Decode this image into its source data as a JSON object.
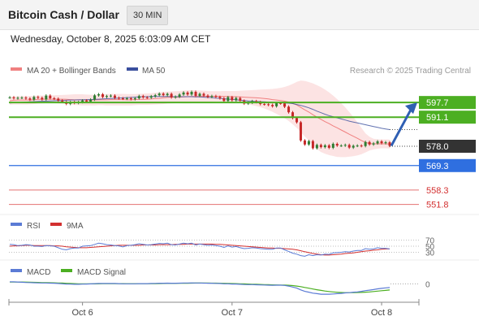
{
  "header": {
    "pair_title": "Bitcoin Cash / Dollar",
    "timeframe": "30 MIN",
    "datetime": "Wednesday, October 8, 2025 6:03:09 AM CET"
  },
  "colors": {
    "bullish_candle": "#2e7d32",
    "bearish_candle": "#c62828",
    "ma20": "#f08080",
    "bollinger_band": "#fbdada",
    "ma50": "#3a4f9e",
    "resistance": "#4caf22",
    "current_price": "#333333",
    "pivot": "#2f6fe0",
    "support": "#e57373",
    "rsi": "#5b7bd5",
    "rsi_9ma": "#d32f2f",
    "macd": "#5b7bd5",
    "macd_signal": "#4caf22",
    "forecast_arrow": "#2f5fb3"
  },
  "chart_data": [
    {
      "type": "candlestick",
      "panel": "price",
      "title": "",
      "legend": [
        {
          "label": "MA 20 + Bollinger Bands",
          "color": "#f08080"
        },
        {
          "label": "MA 50",
          "color": "#3a4f9e"
        }
      ],
      "watermark": "Research © 2025 Trading Central",
      "ylim": [
        548,
        608
      ],
      "x_ticks": [
        "Oct 6",
        "Oct 7",
        "Oct 8"
      ],
      "close": [
        600.0,
        599.6,
        599.8,
        599.9,
        599.5,
        599.0,
        600.2,
        599.8,
        599.1,
        600.8,
        599.6,
        599.4,
        598.6,
        598.0,
        597.1,
        597.9,
        597.5,
        597.9,
        598.6,
        598.1,
        599.0,
        600.9,
        601.4,
        600.2,
        600.6,
        600.8,
        599.8,
        599.6,
        599.4,
        599.6,
        599.2,
        599.6,
        600.6,
        600.0,
        599.9,
        600.5,
        601.0,
        601.7,
        601.0,
        601.6,
        600.0,
        600.3,
        601.3,
        602.2,
        601.3,
        602.5,
        600.7,
        601.6,
        600.8,
        600.2,
        600.6,
        600.2,
        599.6,
        598.4,
        600.1,
        598.7,
        599.7,
        598.5,
        597.2,
        597.6,
        598.3,
        597.9,
        597.0,
        596.9,
        596.6,
        596.0,
        597.4,
        597.3,
        595.8,
        593.3,
        590.7,
        588.8,
        580.6,
        578.8,
        580.3,
        577.1,
        578.6,
        577.6,
        578.4,
        577.3,
        579.1,
        578.3,
        578.3,
        578.6,
        577.4,
        578.2,
        578.3,
        578.1,
        579.9,
        578.8,
        579.3,
        580.2,
        579.4,
        579.8,
        578.2
      ],
      "ma20": [
        598.5,
        598.7,
        598.8,
        598.8,
        598.8,
        598.8,
        598.9,
        599.1,
        599.1,
        599.2,
        599.2,
        599.2,
        599.2,
        599.2,
        599.1,
        599.0,
        598.9,
        598.9,
        598.9,
        598.8,
        598.8,
        598.8,
        598.9,
        598.9,
        598.9,
        599.0,
        599.0,
        599.0,
        599.0,
        598.9,
        598.9,
        599.0,
        599.1,
        599.1,
        599.2,
        599.3,
        599.5,
        599.6,
        599.8,
        600.0,
        600.1,
        600.1,
        600.1,
        600.2,
        600.3,
        600.4,
        600.4,
        600.5,
        600.5,
        600.5,
        600.5,
        600.5,
        600.5,
        600.4,
        600.4,
        600.3,
        600.3,
        600.2,
        600.1,
        600.0,
        599.9,
        599.8,
        599.7,
        599.5,
        599.3,
        599.0,
        598.8,
        598.6,
        598.3,
        597.9,
        597.3,
        596.6,
        595.5,
        594.4,
        593.4,
        592.2,
        591.1,
        590.1,
        589.1,
        588.2,
        587.2,
        586.3,
        585.3,
        584.4,
        583.4,
        582.5,
        581.6,
        580.6,
        579.8,
        579.2,
        579.1,
        579.1,
        579.1,
        579.1,
        579.0
      ],
      "bb_upper": [
        600.3,
        600.4,
        600.5,
        600.6,
        600.6,
        600.6,
        600.7,
        600.8,
        600.8,
        600.9,
        600.9,
        601.0,
        601.0,
        601.1,
        601.2,
        601.3,
        601.4,
        601.4,
        601.4,
        601.3,
        601.2,
        601.2,
        601.3,
        601.4,
        601.5,
        601.6,
        601.6,
        601.6,
        601.6,
        601.5,
        601.5,
        601.5,
        601.6,
        601.7,
        601.8,
        601.9,
        602.1,
        602.3,
        602.5,
        602.6,
        602.7,
        602.8,
        602.9,
        603.1,
        603.2,
        603.3,
        603.2,
        603.1,
        603.0,
        602.9,
        602.8,
        602.8,
        602.8,
        602.9,
        602.9,
        602.9,
        602.9,
        603.0,
        603.1,
        603.2,
        603.3,
        603.4,
        603.5,
        603.6,
        603.7,
        603.8,
        604.0,
        604.3,
        604.7,
        605.3,
        606.1,
        607.0,
        607.6,
        607.4,
        606.9,
        606.3,
        605.5,
        604.6,
        603.5,
        602.3,
        600.8,
        599.2,
        597.4,
        595.5,
        593.4,
        591.2,
        588.8,
        586.3,
        583.8,
        582.3,
        581.4,
        581.1,
        581.0,
        581.1,
        581.0
      ],
      "bb_lower": [
        596.7,
        596.8,
        596.8,
        596.8,
        596.8,
        596.9,
        597.0,
        597.2,
        597.3,
        597.4,
        597.5,
        597.4,
        597.3,
        597.2,
        597.0,
        596.8,
        596.6,
        596.5,
        596.4,
        596.4,
        596.4,
        596.4,
        596.5,
        596.5,
        596.4,
        596.4,
        596.4,
        596.4,
        596.4,
        596.4,
        596.4,
        596.5,
        596.6,
        596.6,
        596.6,
        596.7,
        596.8,
        596.9,
        597.0,
        597.2,
        597.3,
        597.4,
        597.4,
        597.3,
        597.3,
        597.4,
        597.5,
        597.7,
        597.8,
        597.9,
        598.0,
        598.1,
        598.1,
        598.0,
        597.9,
        597.8,
        597.6,
        597.5,
        597.2,
        596.9,
        596.5,
        596.1,
        595.6,
        595.0,
        594.3,
        593.5,
        592.6,
        591.6,
        590.6,
        589.4,
        587.9,
        586.3,
        584.4,
        582.4,
        580.6,
        578.6,
        576.7,
        575.4,
        574.6,
        574.0,
        573.6,
        573.2,
        573.1,
        573.1,
        573.3,
        573.5,
        573.9,
        574.4,
        575.2,
        576.1,
        576.6,
        576.9,
        577.1,
        577.1,
        577.0
      ],
      "ma50": [
        597.5,
        597.6,
        597.7,
        597.8,
        597.9,
        598.0,
        598.1,
        598.2,
        598.3,
        598.3,
        598.4,
        598.5,
        598.6,
        598.6,
        598.7,
        598.8,
        598.8,
        598.9,
        598.9,
        599.0,
        599.0,
        599.1,
        599.2,
        599.3,
        599.4,
        599.5,
        599.6,
        599.7,
        599.8,
        599.9,
        600.0,
        600.1,
        600.2,
        600.3,
        600.3,
        600.4,
        600.4,
        600.4,
        600.4,
        600.4,
        600.3,
        600.3,
        600.3,
        600.3,
        600.3,
        600.3,
        600.2,
        600.2,
        600.1,
        600.0,
        599.9,
        599.7,
        599.6,
        599.4,
        599.2,
        599.1,
        598.9,
        598.7,
        598.6,
        598.4,
        598.3,
        598.2,
        598.1,
        598.0,
        597.9,
        597.8,
        597.7,
        597.6,
        597.5,
        597.4,
        597.2,
        596.8,
        596.4,
        595.9,
        595.3,
        594.6,
        593.8,
        593.1,
        592.4,
        591.8,
        591.3,
        590.8,
        590.3,
        589.8,
        589.3,
        588.9,
        588.5,
        588.1,
        587.7,
        587.3,
        586.9,
        586.5,
        586.1,
        585.8,
        585.5
      ],
      "levels": [
        {
          "role": "resistance",
          "value": "597.7"
        },
        {
          "role": "resistance",
          "value": "591.1"
        },
        {
          "role": "current",
          "value": "578.0"
        },
        {
          "role": "pivot",
          "value": "569.3"
        },
        {
          "role": "support",
          "value": "558.3"
        },
        {
          "role": "support",
          "value": "551.8"
        }
      ],
      "forecast_target": 597.7
    },
    {
      "type": "line",
      "panel": "rsi",
      "legend": [
        {
          "label": "RSI",
          "color": "#5b7bd5"
        },
        {
          "label": "9MA",
          "color": "#d32f2f"
        }
      ],
      "ylim": [
        10,
        90
      ],
      "y_ticks": [
        "70",
        "50",
        "30"
      ],
      "series": [
        {
          "name": "RSI",
          "values": [
            56,
            55,
            52,
            53,
            55,
            54,
            50,
            50,
            49,
            52,
            51,
            50,
            45,
            40,
            38,
            42,
            44,
            44,
            50,
            51,
            52,
            56,
            60,
            58,
            55,
            54,
            52,
            51,
            48,
            52,
            53,
            55,
            58,
            56,
            54,
            55,
            57,
            59,
            58,
            60,
            55,
            54,
            57,
            60,
            58,
            60,
            54,
            57,
            55,
            53,
            54,
            52,
            50,
            46,
            51,
            47,
            49,
            45,
            42,
            43,
            45,
            44,
            42,
            41,
            40,
            40,
            44,
            44,
            38,
            33,
            27,
            24,
            19,
            17,
            22,
            19,
            22,
            21,
            24,
            23,
            28,
            29,
            30,
            32,
            31,
            34,
            36,
            36,
            42,
            40,
            41,
            45,
            43,
            43,
            41
          ]
        },
        {
          "name": "9MA",
          "values": [
            50,
            51,
            51,
            52,
            53,
            53,
            52,
            52,
            52,
            52,
            52,
            51,
            51,
            50,
            48,
            47,
            46,
            45,
            45,
            45,
            46,
            47,
            48,
            49,
            50,
            51,
            52,
            53,
            53,
            53,
            53,
            53,
            53,
            54,
            54,
            54,
            54,
            55,
            55,
            55,
            55,
            56,
            56,
            56,
            57,
            57,
            57,
            57,
            57,
            57,
            57,
            56,
            56,
            55,
            54,
            53,
            52,
            51,
            50,
            49,
            48,
            47,
            46,
            45,
            44,
            44,
            43,
            43,
            42,
            41,
            40,
            38,
            35,
            32,
            29,
            26,
            24,
            22,
            21,
            21,
            22,
            23,
            24,
            26,
            27,
            28,
            30,
            32,
            34,
            35,
            37,
            38,
            40,
            41,
            41
          ]
        }
      ]
    },
    {
      "type": "line",
      "panel": "macd",
      "legend": [
        {
          "label": "MACD",
          "color": "#5b7bd5"
        },
        {
          "label": "MACD Signal",
          "color": "#4caf22"
        }
      ],
      "ylim": [
        -6,
        2
      ],
      "y_ticks": [
        "0"
      ],
      "series": [
        {
          "name": "MACD",
          "values": [
            0.8,
            0.75,
            0.7,
            0.6,
            0.5,
            0.45,
            0.4,
            0.35,
            0.3,
            0.3,
            0.25,
            0.2,
            0.1,
            0.0,
            -0.1,
            -0.15,
            -0.2,
            -0.2,
            -0.15,
            -0.1,
            -0.05,
            0.05,
            0.1,
            0.1,
            0.1,
            0.1,
            0.1,
            0.05,
            0.0,
            0.0,
            0.0,
            0.0,
            0.05,
            0.05,
            0.05,
            0.1,
            0.15,
            0.2,
            0.2,
            0.25,
            0.2,
            0.2,
            0.25,
            0.3,
            0.3,
            0.35,
            0.3,
            0.3,
            0.25,
            0.2,
            0.2,
            0.15,
            0.1,
            0.0,
            0.0,
            -0.1,
            -0.1,
            -0.2,
            -0.3,
            -0.35,
            -0.35,
            -0.4,
            -0.45,
            -0.5,
            -0.55,
            -0.6,
            -0.55,
            -0.55,
            -0.65,
            -0.9,
            -1.3,
            -1.7,
            -2.4,
            -3.0,
            -3.3,
            -3.7,
            -3.9,
            -4.1,
            -4.1,
            -4.1,
            -4.0,
            -3.9,
            -3.8,
            -3.6,
            -3.5,
            -3.3,
            -3.2,
            -3.0,
            -2.7,
            -2.5,
            -2.3,
            -2.0,
            -1.8,
            -1.6,
            -1.5
          ]
        },
        {
          "name": "MACD Signal",
          "values": [
            0.7,
            0.7,
            0.7,
            0.68,
            0.65,
            0.61,
            0.57,
            0.53,
            0.48,
            0.45,
            0.41,
            0.37,
            0.32,
            0.26,
            0.19,
            0.12,
            0.06,
            0.0,
            -0.04,
            -0.06,
            -0.06,
            -0.04,
            -0.01,
            0.01,
            0.03,
            0.04,
            0.05,
            0.05,
            0.04,
            0.03,
            0.03,
            0.02,
            0.03,
            0.03,
            0.03,
            0.04,
            0.06,
            0.09,
            0.11,
            0.14,
            0.15,
            0.16,
            0.18,
            0.2,
            0.22,
            0.25,
            0.26,
            0.27,
            0.27,
            0.26,
            0.25,
            0.23,
            0.21,
            0.17,
            0.13,
            0.09,
            0.05,
            0.0,
            -0.06,
            -0.12,
            -0.17,
            -0.22,
            -0.27,
            -0.32,
            -0.37,
            -0.42,
            -0.45,
            -0.48,
            -0.52,
            -0.6,
            -0.73,
            -0.9,
            -1.15,
            -1.45,
            -1.75,
            -2.05,
            -2.35,
            -2.6,
            -2.85,
            -3.05,
            -3.2,
            -3.35,
            -3.45,
            -3.5,
            -3.5,
            -3.5,
            -3.45,
            -3.4,
            -3.3,
            -3.2,
            -3.05,
            -2.9,
            -2.75,
            -2.6,
            -2.45
          ]
        }
      ]
    }
  ]
}
